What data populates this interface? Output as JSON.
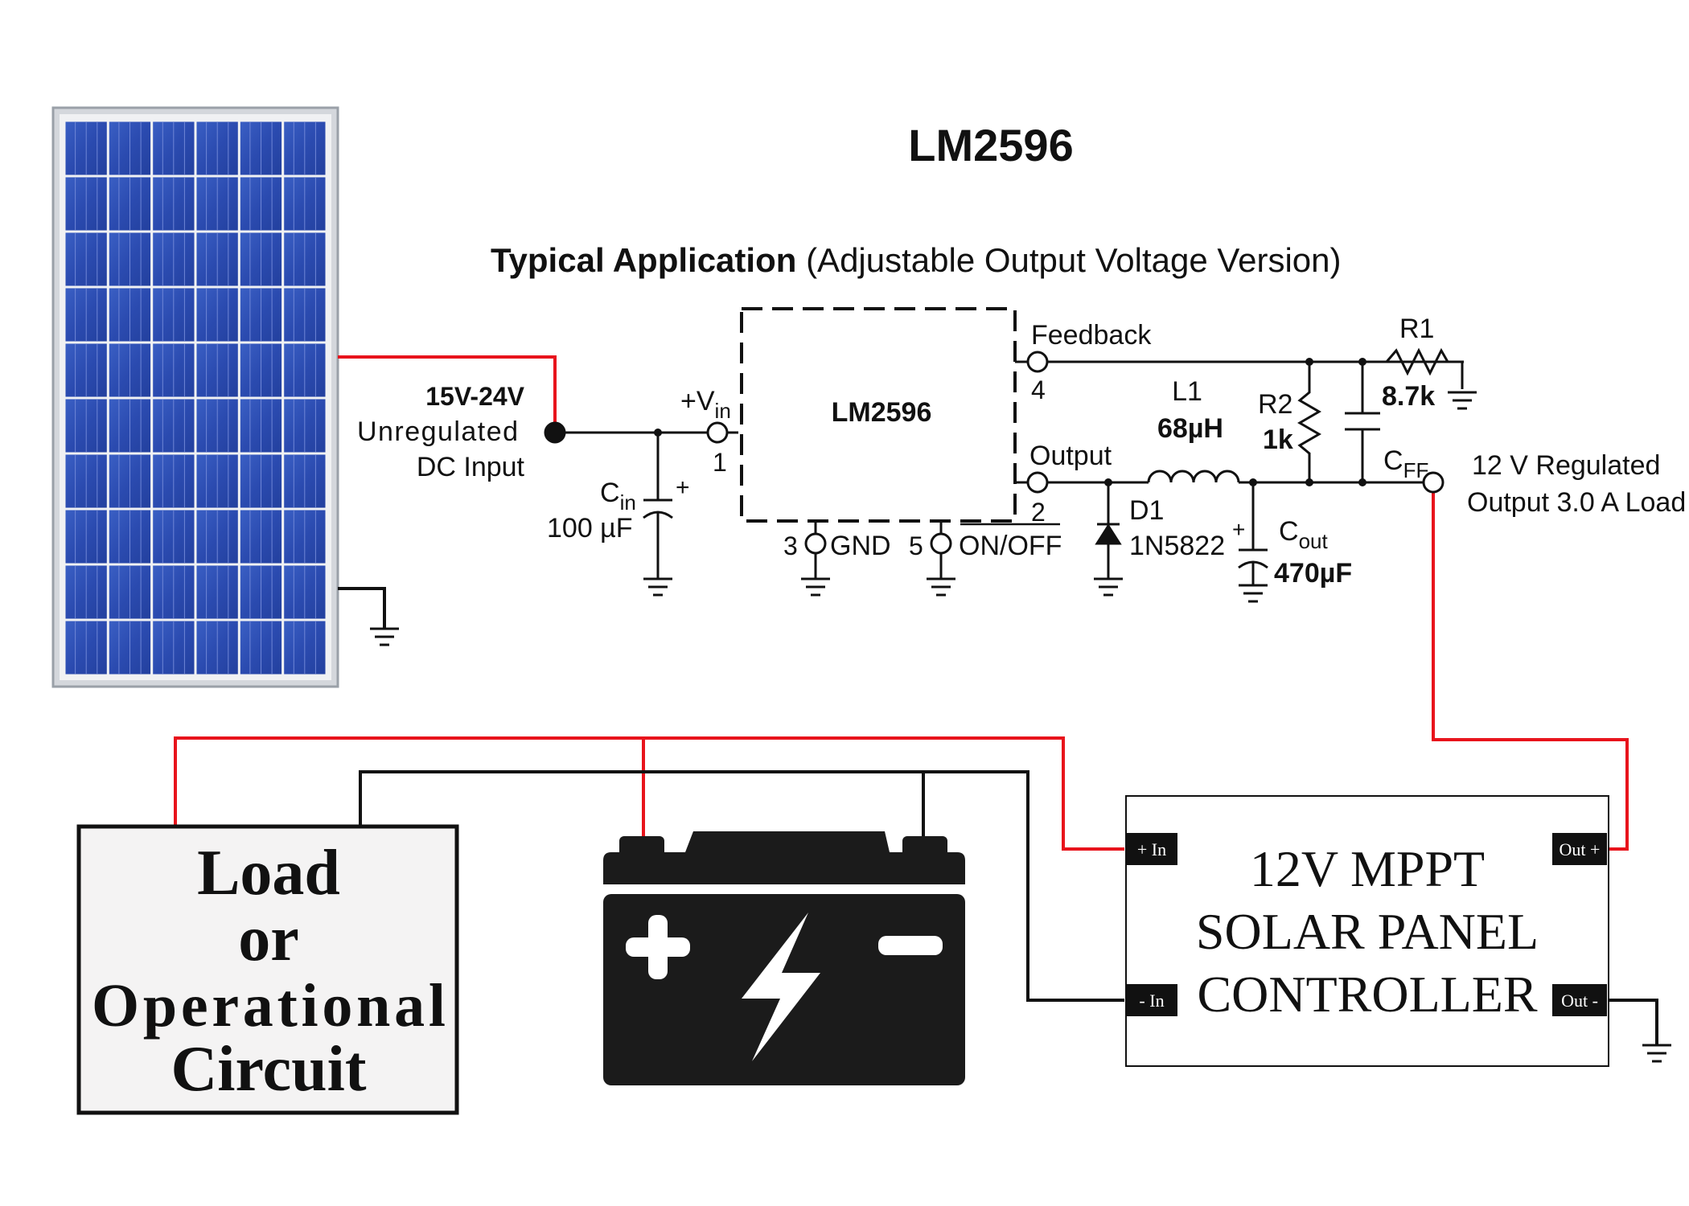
{
  "header": {
    "chip_name": "LM2596",
    "subtitle_bold": "Typical Application",
    "subtitle_rest": "(Adjustable Output Voltage Version)"
  },
  "input": {
    "line1": "15V-24V",
    "line2": "Unregulated",
    "line3": "DC Input"
  },
  "ic": {
    "label": "LM2596",
    "vin_main": "+V",
    "vin_sub": "in",
    "pin1": "1",
    "feedback": "Feedback",
    "pin4": "4",
    "output": "Output",
    "pin2": "2",
    "pin3": "3",
    "gnd": "GND",
    "pin5": "5",
    "onoff": "ON/OFF"
  },
  "components": {
    "cin_main": "C",
    "cin_sub": "in",
    "cin_plus": "+",
    "cin_value": "100 µF",
    "l1_name": "L1",
    "l1_value": "68µH",
    "d1_name": "D1",
    "d1_value": "1N5822",
    "cout_plus": "+",
    "cout_main": "C",
    "cout_sub": "out",
    "cout_value": "470µF",
    "r2_name": "R2",
    "r2_value": "1k",
    "r1_name": "R1",
    "r1_value": "8.7k",
    "cff_main": "C",
    "cff_sub": "FF"
  },
  "output": {
    "line1": "12 V Regulated",
    "line2": "Output 3.0 A Load"
  },
  "controller": {
    "line1": "12V MPPT",
    "line2": "SOLAR PANEL",
    "line3": "CONTROLLER",
    "in_plus": "+ In",
    "in_minus": "- In",
    "out_plus": "Out +",
    "out_minus": "Out -"
  },
  "load_box": {
    "line1": "Load",
    "line2": "or",
    "line3": "Operational",
    "line4": "Circuit"
  },
  "colors": {
    "positive_wire": "#e8141c",
    "negative_wire": "#111111",
    "panel_cell": "#2e4fb3",
    "panel_frame": "#c9ccd2"
  }
}
